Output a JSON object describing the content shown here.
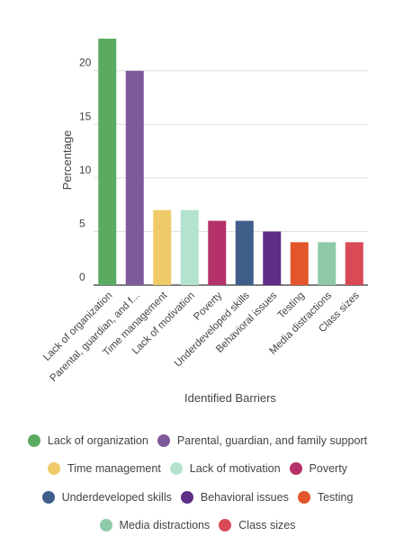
{
  "chart_data": {
    "type": "bar",
    "xlabel": "Identified Barriers",
    "ylabel": "Percentage",
    "ylim": [
      0,
      23
    ],
    "yticks": [
      0,
      5,
      10,
      15,
      20
    ],
    "grid": true,
    "legend_position": "bottom",
    "categories": [
      "Lack of organization",
      "Parental, guardian, and family support",
      "Time management",
      "Lack of motivation",
      "Poverty",
      "Underdeveloped skills",
      "Behavioral issues",
      "Testing",
      "Media distractions",
      "Class sizes"
    ],
    "category_tick_labels": [
      "Lack of organization",
      "Parental, guardian, and f...",
      "Time management",
      "Lack of motivation",
      "Poverty",
      "Underdeveloped skills",
      "Behavioral issues",
      "Testing",
      "Media distractions",
      "Class sizes"
    ],
    "values": [
      23,
      20,
      7,
      7,
      6,
      6,
      5,
      4,
      4,
      4
    ],
    "colors": [
      "#5aab61",
      "#7e5a9b",
      "#f0ca68",
      "#b3e3ce",
      "#b5316a",
      "#3f5f8a",
      "#5e2d86",
      "#e1562b",
      "#8ecaa8",
      "#d84a55"
    ]
  }
}
